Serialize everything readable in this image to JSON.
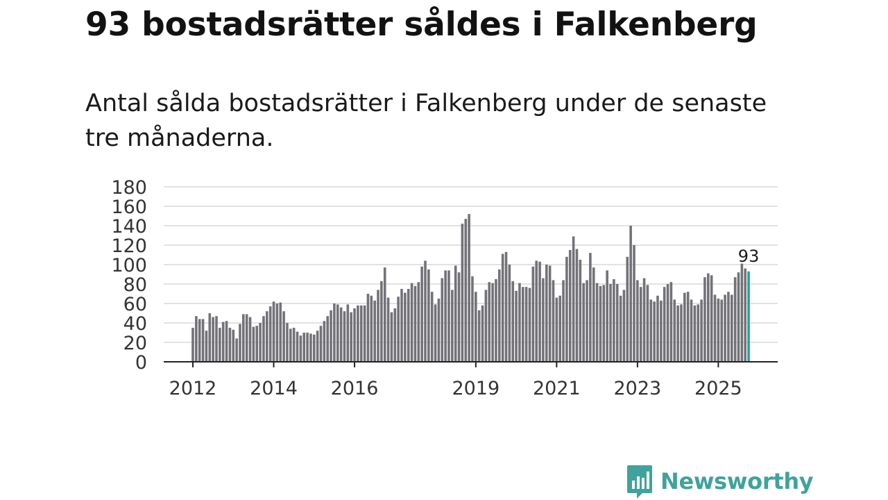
{
  "header": {
    "title": "93 bostadsrätter såldes i Falkenberg",
    "subtitle": "Antal sålda bostadsrätter i Falkenberg under de senaste tre månaderna."
  },
  "brand": {
    "name": "Newsworthy",
    "icon": "bar-chart-bubble-icon",
    "color": "#3fa39b"
  },
  "colors": {
    "bar": "#737278",
    "highlight": "#20a39e",
    "grid": "#d9d9d9",
    "axis": "#222222"
  },
  "chart_data": {
    "type": "bar",
    "title": "93 bostadsrätter såldes i Falkenberg",
    "subtitle": "Antal sålda bostadsrätter i Falkenberg under de senaste tre månaderna.",
    "xlabel": "",
    "ylabel": "",
    "ylim": [
      0,
      180
    ],
    "yticks": [
      0,
      20,
      40,
      60,
      80,
      100,
      120,
      140,
      160,
      180
    ],
    "grid": true,
    "series_start": 2012,
    "x_tick_labels": [
      {
        "label": "2012",
        "x": 2012
      },
      {
        "label": "2014",
        "x": 2014
      },
      {
        "label": "2016",
        "x": 2016
      },
      {
        "label": "2019",
        "x": 2019
      },
      {
        "label": "2021",
        "x": 2021
      },
      {
        "label": "2023",
        "x": 2023
      },
      {
        "label": "2025",
        "x": 2025
      }
    ],
    "highlight_label": "93",
    "values": [
      35,
      47,
      44,
      44,
      32,
      50,
      46,
      47,
      35,
      41,
      42,
      35,
      33,
      24,
      39,
      49,
      49,
      46,
      36,
      37,
      40,
      47,
      52,
      57,
      62,
      60,
      61,
      52,
      40,
      34,
      35,
      31,
      27,
      30,
      30,
      29,
      28,
      32,
      37,
      42,
      47,
      53,
      60,
      59,
      56,
      52,
      59,
      51,
      55,
      58,
      58,
      58,
      70,
      68,
      63,
      74,
      83,
      97,
      66,
      51,
      55,
      67,
      75,
      71,
      75,
      81,
      78,
      82,
      98,
      104,
      95,
      72,
      59,
      65,
      86,
      94,
      94,
      74,
      99,
      92,
      142,
      147,
      152,
      88,
      72,
      53,
      58,
      74,
      82,
      81,
      85,
      95,
      111,
      113,
      100,
      83,
      73,
      81,
      77,
      77,
      76,
      98,
      104,
      103,
      86,
      100,
      99,
      84,
      66,
      68,
      84,
      108,
      115,
      129,
      116,
      105,
      81,
      84,
      112,
      97,
      81,
      78,
      79,
      94,
      80,
      85,
      80,
      68,
      74,
      108,
      140,
      120,
      84,
      77,
      86,
      79,
      64,
      62,
      68,
      63,
      77,
      80,
      82,
      64,
      58,
      59,
      71,
      72,
      64,
      58,
      59,
      64,
      87,
      91,
      89,
      69,
      65,
      64,
      69,
      72,
      69,
      87,
      92,
      101,
      96,
      93
    ]
  }
}
